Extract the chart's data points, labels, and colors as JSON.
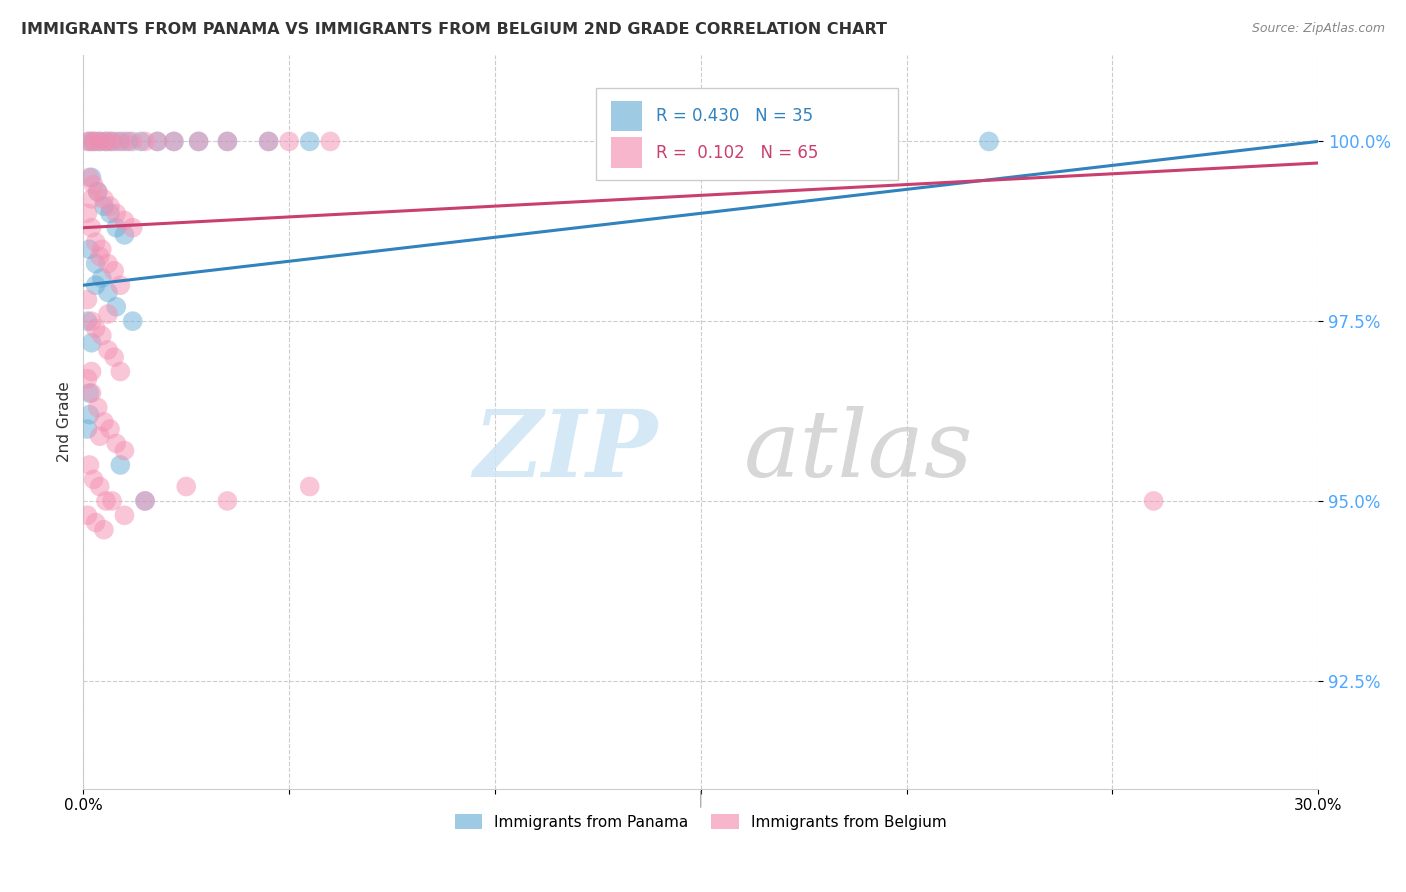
{
  "title": "IMMIGRANTS FROM PANAMA VS IMMIGRANTS FROM BELGIUM 2ND GRADE CORRELATION CHART",
  "source": "Source: ZipAtlas.com",
  "ylabel": "2nd Grade",
  "ytick_labels": [
    "92.5%",
    "95.0%",
    "97.5%",
    "100.0%"
  ],
  "ytick_values": [
    92.5,
    95.0,
    97.5,
    100.0
  ],
  "xlim": [
    0.0,
    30.0
  ],
  "ylim": [
    91.0,
    101.2
  ],
  "legend_panama": "Immigrants from Panama",
  "legend_belgium": "Immigrants from Belgium",
  "r_panama": 0.43,
  "n_panama": 35,
  "r_belgium": 0.102,
  "n_belgium": 65,
  "color_panama": "#6baed6",
  "color_belgium": "#f48fb1",
  "color_panama_line": "#3182bd",
  "color_belgium_line": "#c94070",
  "panama_points": [
    [
      0.15,
      100.0
    ],
    [
      0.25,
      100.0
    ],
    [
      0.4,
      100.0
    ],
    [
      0.55,
      100.0
    ],
    [
      0.7,
      100.0
    ],
    [
      0.9,
      100.0
    ],
    [
      1.1,
      100.0
    ],
    [
      1.4,
      100.0
    ],
    [
      1.8,
      100.0
    ],
    [
      2.2,
      100.0
    ],
    [
      2.8,
      100.0
    ],
    [
      3.5,
      100.0
    ],
    [
      4.5,
      100.0
    ],
    [
      5.5,
      100.0
    ],
    [
      0.2,
      99.5
    ],
    [
      0.35,
      99.3
    ],
    [
      0.5,
      99.1
    ],
    [
      0.65,
      99.0
    ],
    [
      0.8,
      98.8
    ],
    [
      1.0,
      98.7
    ],
    [
      0.15,
      98.5
    ],
    [
      0.3,
      98.3
    ],
    [
      0.45,
      98.1
    ],
    [
      0.6,
      97.9
    ],
    [
      0.8,
      97.7
    ],
    [
      0.1,
      97.5
    ],
    [
      0.2,
      97.2
    ],
    [
      0.15,
      96.5
    ],
    [
      1.2,
      97.5
    ],
    [
      0.1,
      96.0
    ],
    [
      1.5,
      95.0
    ],
    [
      0.9,
      95.5
    ],
    [
      0.15,
      96.2
    ],
    [
      0.3,
      98.0
    ],
    [
      22.0,
      100.0
    ]
  ],
  "belgium_points": [
    [
      0.1,
      100.0
    ],
    [
      0.2,
      100.0
    ],
    [
      0.3,
      100.0
    ],
    [
      0.4,
      100.0
    ],
    [
      0.55,
      100.0
    ],
    [
      0.65,
      100.0
    ],
    [
      0.8,
      100.0
    ],
    [
      1.0,
      100.0
    ],
    [
      1.2,
      100.0
    ],
    [
      1.5,
      100.0
    ],
    [
      1.8,
      100.0
    ],
    [
      2.2,
      100.0
    ],
    [
      2.8,
      100.0
    ],
    [
      3.5,
      100.0
    ],
    [
      4.5,
      100.0
    ],
    [
      5.0,
      100.0
    ],
    [
      6.0,
      100.0
    ],
    [
      0.15,
      99.5
    ],
    [
      0.25,
      99.4
    ],
    [
      0.35,
      99.3
    ],
    [
      0.5,
      99.2
    ],
    [
      0.65,
      99.1
    ],
    [
      0.8,
      99.0
    ],
    [
      1.0,
      98.9
    ],
    [
      1.2,
      98.8
    ],
    [
      0.1,
      99.0
    ],
    [
      0.2,
      98.8
    ],
    [
      0.3,
      98.6
    ],
    [
      0.45,
      98.5
    ],
    [
      0.6,
      98.3
    ],
    [
      0.75,
      98.2
    ],
    [
      0.9,
      98.0
    ],
    [
      0.1,
      97.8
    ],
    [
      0.2,
      97.5
    ],
    [
      0.3,
      97.4
    ],
    [
      0.45,
      97.3
    ],
    [
      0.6,
      97.1
    ],
    [
      0.75,
      97.0
    ],
    [
      0.9,
      96.8
    ],
    [
      0.1,
      96.7
    ],
    [
      0.2,
      96.5
    ],
    [
      0.35,
      96.3
    ],
    [
      0.5,
      96.1
    ],
    [
      0.65,
      96.0
    ],
    [
      0.8,
      95.8
    ],
    [
      1.0,
      95.7
    ],
    [
      0.15,
      95.5
    ],
    [
      0.25,
      95.3
    ],
    [
      0.4,
      95.2
    ],
    [
      0.55,
      95.0
    ],
    [
      0.7,
      95.0
    ],
    [
      1.5,
      95.0
    ],
    [
      2.5,
      95.2
    ],
    [
      0.1,
      94.8
    ],
    [
      0.3,
      94.7
    ],
    [
      0.5,
      94.6
    ],
    [
      1.0,
      94.8
    ],
    [
      3.5,
      95.0
    ],
    [
      5.5,
      95.2
    ],
    [
      0.2,
      99.2
    ],
    [
      0.4,
      98.4
    ],
    [
      0.6,
      97.6
    ],
    [
      0.2,
      96.8
    ],
    [
      0.4,
      95.9
    ],
    [
      26.0,
      95.0
    ]
  ],
  "panama_line_x": [
    0.0,
    30.0
  ],
  "panama_line_y": [
    98.0,
    100.0
  ],
  "belgium_line_x": [
    0.0,
    30.0
  ],
  "belgium_line_y": [
    98.8,
    99.7
  ]
}
